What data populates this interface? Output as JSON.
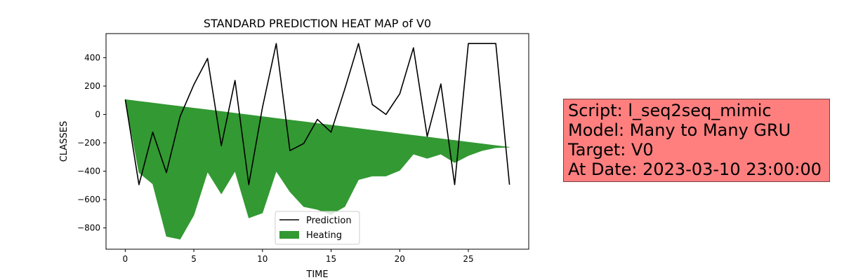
{
  "chart_data": {
    "type": "line",
    "title": "STANDARD PREDICTION HEAT MAP of V0",
    "xlabel": "TIME",
    "ylabel": "CLASSES",
    "xlim": [
      -1.4,
      29.4
    ],
    "ylim": [
      -950,
      570
    ],
    "xticks": [
      0,
      5,
      10,
      15,
      20,
      25
    ],
    "yticks": [
      400,
      200,
      0,
      -200,
      -400,
      -600,
      -800
    ],
    "ytick_labels": [
      "400",
      "200",
      "0",
      "−200",
      "−400",
      "−600",
      "−800"
    ],
    "grid": false,
    "legend_position": "lower-center",
    "series": [
      {
        "name": "Prediction",
        "kind": "line",
        "color": "#000000",
        "x": [
          0,
          1,
          2,
          3,
          4,
          5,
          6,
          7,
          8,
          9,
          10,
          11,
          12,
          13,
          14,
          15,
          16,
          17,
          18,
          19,
          20,
          21,
          22,
          23,
          24,
          25,
          26,
          27,
          28
        ],
        "y": [
          105,
          -495,
          -125,
          -410,
          -15,
          210,
          395,
          -220,
          240,
          -495,
          50,
          500,
          -255,
          -205,
          -35,
          -125,
          180,
          500,
          70,
          0,
          145,
          470,
          -155,
          215,
          -495,
          500,
          500,
          500,
          -495
        ]
      },
      {
        "name": "Heating",
        "kind": "area",
        "color": "#339933",
        "x": [
          0,
          1,
          2,
          3,
          4,
          5,
          6,
          7,
          8,
          9,
          10,
          11,
          12,
          13,
          14,
          15,
          16,
          17,
          18,
          19,
          20,
          21,
          22,
          23,
          24,
          25,
          26,
          27,
          28
        ],
        "upper": [
          105,
          93,
          81,
          69,
          57,
          45,
          33,
          21,
          9,
          -3,
          -15,
          -27,
          -39,
          -51,
          -63,
          -75,
          -87,
          -99,
          -111,
          -123,
          -135,
          -147,
          -159,
          -171,
          -183,
          -195,
          -207,
          -219,
          -231
        ],
        "lower": [
          105,
          -410,
          -490,
          -860,
          -880,
          -710,
          -405,
          -560,
          -400,
          -730,
          -695,
          -400,
          -545,
          -650,
          -670,
          -705,
          -650,
          -460,
          -435,
          -435,
          -395,
          -280,
          -310,
          -280,
          -340,
          -290,
          -255,
          -235,
          -231
        ]
      }
    ]
  },
  "info_box": {
    "script": "Script: l_seq2seq_mimic",
    "model": "Model: Many to Many GRU",
    "target": "Target: V0",
    "date": "At Date: 2023-03-10 23:00:00",
    "background_color": "#ff7f7f"
  }
}
